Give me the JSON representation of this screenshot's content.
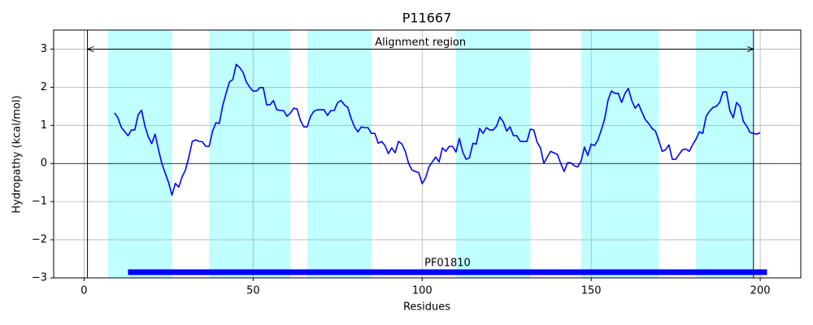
{
  "chart_data": {
    "type": "line",
    "title": "P11667",
    "x_label": "Residues",
    "y_label": "Hydropathy (kcal/mol)",
    "xlim": [
      -9,
      212
    ],
    "ylim": [
      -3,
      3.5
    ],
    "xticks": [
      0,
      50,
      100,
      150,
      200
    ],
    "yticks": [
      {
        "value": -3,
        "label": "−3"
      },
      {
        "value": -2,
        "label": "−2"
      },
      {
        "value": -1,
        "label": "−1"
      },
      0,
      1,
      2,
      3
    ],
    "grid": true,
    "zero_line": 0,
    "regions": [
      [
        7,
        26
      ],
      [
        37,
        61
      ],
      [
        66,
        85
      ],
      [
        110,
        132
      ],
      [
        147,
        170
      ],
      [
        181,
        198
      ]
    ],
    "region_color": "#bfffff",
    "vlines": [
      1,
      198
    ],
    "annotation": {
      "text": "Alignment region",
      "start": 1,
      "end": 198,
      "y": 3
    },
    "domain": {
      "label": "PF01810",
      "start": 13,
      "end": 202,
      "y": -2.85,
      "color": "#0000ff"
    },
    "x": [
      9,
      10,
      11,
      12,
      13,
      14,
      15,
      16,
      17,
      18,
      19,
      20,
      21,
      22,
      23,
      24,
      25,
      26,
      27,
      28,
      29,
      30,
      31,
      32,
      33,
      34,
      35,
      36,
      37,
      38,
      39,
      40,
      41,
      42,
      43,
      44,
      45,
      46,
      47,
      48,
      49,
      50,
      51,
      52,
      53,
      54,
      55,
      56,
      57,
      58,
      59,
      60,
      61,
      62,
      63,
      64,
      65,
      66,
      67,
      68,
      69,
      70,
      71,
      72,
      73,
      74,
      75,
      76,
      77,
      78,
      79,
      80,
      81,
      82,
      83,
      84,
      85,
      86,
      87,
      88,
      89,
      90,
      91,
      92,
      93,
      94,
      95,
      96,
      97,
      98,
      99,
      100,
      101,
      102,
      103,
      104,
      105,
      106,
      107,
      108,
      109,
      110,
      111,
      112,
      113,
      114,
      115,
      116,
      117,
      118,
      119,
      120,
      121,
      122,
      123,
      124,
      125,
      126,
      127,
      128,
      129,
      130,
      131,
      132,
      133,
      134,
      135,
      136,
      137,
      138,
      139,
      140,
      141,
      142,
      143,
      144,
      145,
      146,
      147,
      148,
      149,
      150,
      151,
      152,
      153,
      154,
      155,
      156,
      157,
      158,
      159,
      160,
      161,
      162,
      163,
      164,
      165,
      166,
      167,
      168,
      169,
      170,
      171,
      172,
      173,
      174,
      175,
      176,
      177,
      178,
      179,
      180,
      181,
      182,
      183,
      184,
      185,
      186,
      187,
      188,
      189,
      190,
      191,
      192,
      193,
      194,
      195,
      196,
      197,
      198,
      199,
      200
    ],
    "series": [
      {
        "color": "#0000ff",
        "values": [
          1.33,
          1.2,
          0.95,
          0.84,
          0.73,
          0.88,
          0.88,
          1.28,
          1.4,
          0.98,
          0.7,
          0.52,
          0.77,
          0.37,
          0,
          -0.25,
          -0.5,
          -0.83,
          -0.52,
          -0.62,
          -0.35,
          -0.17,
          0.17,
          0.58,
          0.62,
          0.58,
          0.57,
          0.45,
          0.45,
          0.85,
          1.07,
          1.05,
          1.52,
          1.84,
          2.14,
          2.2,
          2.6,
          2.52,
          2.39,
          2.14,
          2.0,
          1.9,
          1.9,
          1.99,
          1.99,
          1.54,
          1.54,
          1.65,
          1.41,
          1.39,
          1.39,
          1.24,
          1.32,
          1.45,
          1.43,
          1.13,
          0.96,
          0.96,
          1.24,
          1.37,
          1.41,
          1.41,
          1.41,
          1.26,
          1.39,
          1.39,
          1.6,
          1.65,
          1.54,
          1.47,
          1.18,
          0.96,
          0.83,
          0.96,
          0.94,
          0.94,
          0.79,
          0.79,
          0.53,
          0.58,
          0.47,
          0.26,
          0.41,
          0.28,
          0.58,
          0.51,
          0.32,
          0,
          -0.17,
          -0.21,
          -0.24,
          -0.53,
          -0.38,
          -0.09,
          0.04,
          0.17,
          0.04,
          0.41,
          0.32,
          0.45,
          0.45,
          0.3,
          0.66,
          0.3,
          0.11,
          0.15,
          0.53,
          0.51,
          0.92,
          0.79,
          0.94,
          0.88,
          0.88,
          0.98,
          1.22,
          1.09,
          0.85,
          0.96,
          0.73,
          0.73,
          0.58,
          0.58,
          0.58,
          0.9,
          0.88,
          0.56,
          0.41,
          0,
          0.17,
          0.32,
          0.28,
          0.24,
          0,
          -0.21,
          0.02,
          0.02,
          -0.06,
          -0.09,
          0.06,
          0.43,
          0.21,
          0.51,
          0.47,
          0.62,
          0.88,
          1.18,
          1.67,
          1.9,
          1.84,
          1.84,
          1.6,
          1.84,
          1.97,
          1.65,
          1.45,
          1.56,
          1.35,
          1.15,
          1.05,
          0.92,
          0.85,
          0.6,
          0.32,
          0.36,
          0.49,
          0.11,
          0.11,
          0.24,
          0.36,
          0.38,
          0.32,
          0.49,
          0.64,
          0.83,
          0.79,
          1.24,
          1.37,
          1.47,
          1.5,
          1.6,
          1.88,
          1.88,
          1.39,
          1.2,
          1.6,
          1.5,
          1.11,
          0.98,
          0.81,
          0.79,
          0.77,
          0.81
        ]
      }
    ]
  }
}
